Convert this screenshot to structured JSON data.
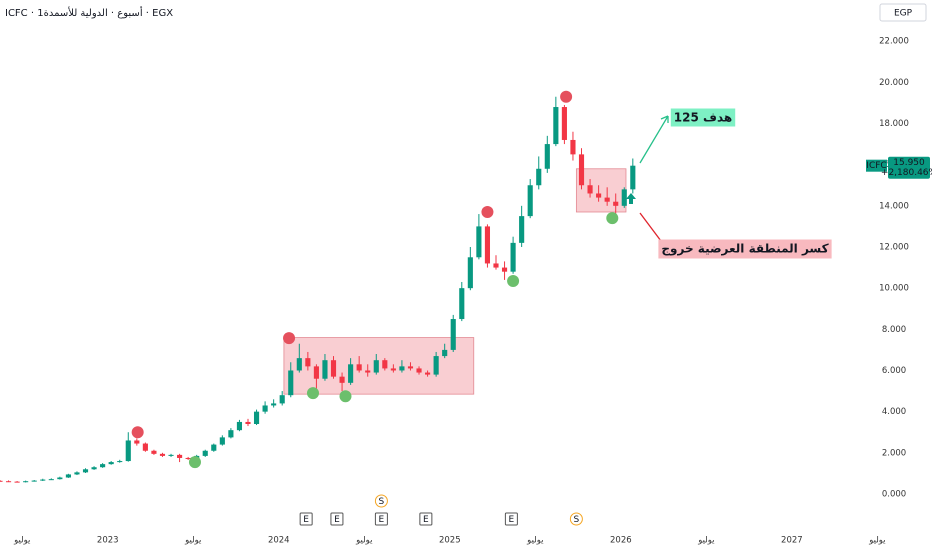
{
  "chart_data": {
    "type": "candlestick",
    "title": "ICFC · 1أسبوع · الدولية للأسمدة · EGX",
    "currency": "EGP",
    "symbol": "ICFC",
    "last_price": {
      "value": 15.95,
      "label": "15.950"
    },
    "change_label": "+2,180.46%",
    "up_color": "#089981",
    "down_color": "#f23645",
    "xlim": [
      2022.37,
      2027.41
    ],
    "ylim": [
      -1.75,
      24
    ],
    "xticks": [
      {
        "value": 2022.5,
        "label": "يوليو"
      },
      2023,
      {
        "value": 2023.5,
        "label": "يوليو"
      },
      2024,
      {
        "value": 2024.5,
        "label": "يوليو"
      },
      2025,
      {
        "value": 2025.5,
        "label": "يوليو"
      },
      2026,
      {
        "value": 2026.5,
        "label": "يوليو"
      },
      2027,
      {
        "value": 2027.5,
        "label": "يوليو"
      }
    ],
    "yticks": [
      {
        "value": 0,
        "label": "0.000"
      },
      {
        "value": 2,
        "label": "2.000"
      },
      {
        "value": 4,
        "label": "4.000"
      },
      {
        "value": 6,
        "label": "6.000"
      },
      {
        "value": 8,
        "label": "8.000"
      },
      {
        "value": 10,
        "label": "10.000"
      },
      {
        "value": 12,
        "label": "12.000"
      },
      {
        "value": 14,
        "label": "14.000"
      },
      {
        "value": 16,
        "label": "16.000"
      },
      {
        "value": 18,
        "label": "18.000"
      },
      {
        "value": 20,
        "label": "20.000"
      },
      {
        "value": 22,
        "label": "22.000"
      }
    ],
    "x": [
      2022.37,
      2022.42,
      2022.47,
      2022.52,
      2022.57,
      2022.62,
      2022.67,
      2022.72,
      2022.77,
      2022.82,
      2022.87,
      2022.92,
      2022.97,
      2023.02,
      2023.07,
      2023.12,
      2023.17,
      2023.22,
      2023.27,
      2023.32,
      2023.37,
      2023.42,
      2023.47,
      2023.52,
      2023.57,
      2023.62,
      2023.67,
      2023.72,
      2023.77,
      2023.82,
      2023.87,
      2023.92,
      2023.97,
      2024.02,
      2024.07,
      2024.12,
      2024.17,
      2024.22,
      2024.27,
      2024.32,
      2024.37,
      2024.42,
      2024.47,
      2024.52,
      2024.57,
      2024.62,
      2024.67,
      2024.72,
      2024.77,
      2024.82,
      2024.87,
      2024.92,
      2024.97,
      2025.02,
      2025.07,
      2025.12,
      2025.17,
      2025.22,
      2025.27,
      2025.32,
      2025.37,
      2025.42,
      2025.47,
      2025.52,
      2025.57,
      2025.62,
      2025.67,
      2025.72,
      2025.77,
      2025.82,
      2025.87,
      2025.92,
      2025.97,
      2026.02,
      2026.07
    ],
    "open": [
      0.64,
      0.62,
      0.6,
      0.58,
      0.62,
      0.65,
      0.7,
      0.72,
      0.8,
      0.95,
      1.05,
      1.2,
      1.3,
      1.45,
      1.55,
      1.6,
      2.6,
      2.45,
      2.1,
      1.95,
      1.85,
      1.9,
      1.75,
      1.7,
      1.85,
      2.1,
      2.4,
      2.75,
      3.1,
      3.5,
      3.4,
      4.0,
      4.3,
      4.4,
      4.8,
      6.0,
      6.6,
      6.2,
      5.6,
      6.5,
      5.7,
      5.4,
      6.3,
      6.0,
      5.9,
      6.5,
      6.1,
      6.0,
      6.2,
      6.1,
      5.9,
      5.8,
      6.7,
      7.0,
      8.5,
      10.0,
      11.5,
      13.0,
      11.2,
      11.0,
      10.8,
      12.2,
      13.5,
      15.0,
      15.8,
      17.0,
      18.8,
      17.2,
      16.5,
      15.0,
      14.6,
      14.4,
      14.2,
      14.0,
      14.8
    ],
    "high": [
      0.68,
      0.66,
      0.63,
      0.65,
      0.68,
      0.74,
      0.76,
      0.84,
      0.98,
      1.1,
      1.25,
      1.35,
      1.5,
      1.6,
      1.66,
      3.0,
      2.7,
      2.5,
      2.15,
      2.0,
      1.95,
      1.95,
      1.8,
      1.9,
      2.15,
      2.45,
      2.85,
      3.2,
      3.6,
      3.65,
      4.1,
      4.5,
      4.6,
      5.0,
      6.4,
      7.3,
      6.9,
      6.3,
      6.8,
      6.7,
      5.9,
      6.6,
      6.7,
      6.3,
      6.8,
      6.6,
      6.3,
      6.5,
      6.4,
      6.2,
      6.0,
      6.9,
      7.3,
      8.7,
      10.3,
      12.0,
      13.6,
      13.1,
      11.6,
      11.3,
      12.5,
      14.0,
      15.3,
      16.4,
      17.4,
      19.3,
      18.9,
      17.6,
      16.8,
      15.3,
      15.0,
      14.9,
      14.6,
      14.9,
      16.3
    ],
    "low": [
      0.6,
      0.58,
      0.56,
      0.56,
      0.6,
      0.63,
      0.68,
      0.7,
      0.78,
      0.92,
      1.02,
      1.17,
      1.27,
      1.42,
      1.52,
      1.57,
      2.35,
      2.05,
      1.9,
      1.8,
      1.8,
      1.55,
      1.65,
      1.65,
      1.8,
      2.05,
      2.35,
      2.7,
      3.05,
      3.3,
      3.35,
      3.9,
      4.2,
      4.3,
      4.7,
      5.9,
      6.0,
      5.1,
      5.5,
      5.6,
      5.0,
      5.3,
      5.9,
      5.7,
      5.8,
      6.0,
      5.9,
      5.9,
      6.0,
      5.8,
      5.7,
      5.7,
      6.6,
      6.9,
      8.4,
      9.9,
      11.4,
      11.0,
      10.9,
      10.4,
      10.7,
      12.0,
      13.4,
      14.8,
      15.6,
      16.9,
      17.0,
      16.2,
      14.8,
      14.4,
      14.2,
      14.0,
      13.6,
      13.9,
      14.6
    ],
    "close": [
      0.62,
      0.6,
      0.58,
      0.62,
      0.65,
      0.7,
      0.72,
      0.8,
      0.95,
      1.05,
      1.2,
      1.3,
      1.45,
      1.55,
      1.6,
      2.6,
      2.45,
      2.1,
      1.95,
      1.85,
      1.9,
      1.75,
      1.7,
      1.85,
      2.1,
      2.4,
      2.75,
      3.1,
      3.5,
      3.4,
      4.0,
      4.3,
      4.4,
      4.8,
      6.0,
      6.6,
      6.2,
      5.6,
      6.5,
      5.7,
      5.4,
      6.3,
      6.0,
      5.9,
      6.5,
      6.1,
      6.0,
      6.2,
      6.1,
      5.9,
      5.8,
      6.7,
      7.0,
      8.5,
      10.0,
      11.5,
      13.0,
      11.2,
      11.0,
      10.8,
      12.2,
      13.5,
      15.0,
      15.8,
      17.0,
      18.8,
      17.2,
      16.5,
      15.0,
      14.6,
      14.4,
      14.2,
      14.0,
      14.8,
      15.95
    ],
    "zones": [
      {
        "x0": 2024.03,
        "x1": 2025.14,
        "y0": 4.85,
        "y1": 7.6,
        "color": "#f4a6ad"
      },
      {
        "x0": 2025.74,
        "x1": 2026.03,
        "y0": 13.7,
        "y1": 15.8,
        "color": "#f4a6ad"
      }
    ],
    "markers": [
      {
        "x": 2023.175,
        "y": 3.0,
        "color": "#e5505d"
      },
      {
        "x": 2024.06,
        "y": 7.57,
        "color": "#e5505d"
      },
      {
        "x": 2025.22,
        "y": 13.7,
        "color": "#e5505d"
      },
      {
        "x": 2025.68,
        "y": 19.3,
        "color": "#e5505d"
      },
      {
        "x": 2023.51,
        "y": 1.55,
        "color": "#6cbf6c"
      },
      {
        "x": 2024.2,
        "y": 4.9,
        "color": "#6cbf6c"
      },
      {
        "x": 2024.39,
        "y": 4.75,
        "color": "#6cbf6c"
      },
      {
        "x": 2025.37,
        "y": 10.35,
        "color": "#6cbf6c"
      },
      {
        "x": 2025.95,
        "y": 13.4,
        "color": "#6cbf6c"
      }
    ],
    "events": [
      {
        "x": 2024.16,
        "label": "E"
      },
      {
        "x": 2024.34,
        "label": "E"
      },
      {
        "x": 2024.6,
        "label": "E"
      },
      {
        "x": 2024.6,
        "label": "S"
      },
      {
        "x": 2024.86,
        "label": "E"
      },
      {
        "x": 2025.36,
        "label": "E"
      },
      {
        "x": 2025.74,
        "label": "S"
      }
    ],
    "annotations": [
      "هدف 125",
      "كسر المنطقة العرضية خروج"
    ]
  }
}
